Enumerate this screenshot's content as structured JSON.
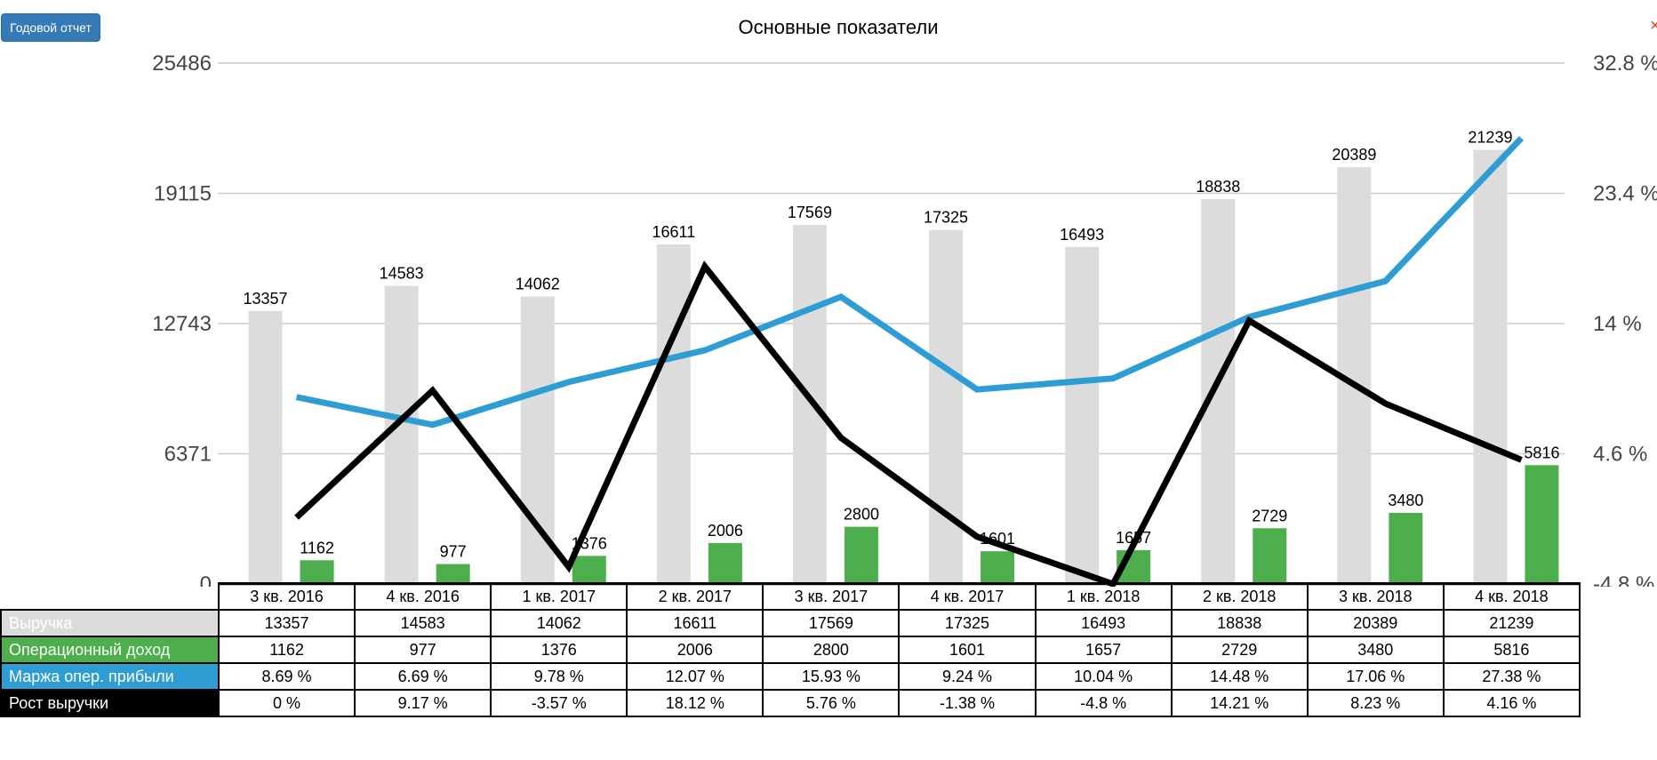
{
  "header": {
    "report_button_label": "Годовой отчет",
    "close_glyph": "×"
  },
  "chart_data": {
    "type": "bar",
    "title": "Основные показатели",
    "categories": [
      "3 кв. 2016",
      "4 кв. 2016",
      "1 кв. 2017",
      "2 кв. 2017",
      "3 кв. 2017",
      "4 кв. 2017",
      "1 кв. 2018",
      "2 кв. 2018",
      "3 кв. 2018",
      "4 кв. 2018"
    ],
    "left_axis": {
      "ylim": [
        0,
        25486
      ],
      "ticks": [
        "0",
        "6371",
        "12743",
        "19115",
        "25486"
      ]
    },
    "right_axis": {
      "ylim": [
        -4.8,
        32.8
      ],
      "ticks": [
        "-4.8 %",
        "4.6 %",
        "14 %",
        "23.4 %",
        "32.8 %"
      ]
    },
    "grid": true,
    "series": [
      {
        "name": "Выручка",
        "type": "bar",
        "axis": "left",
        "color": "#dcdcdc",
        "label_bg": "#dcdcdc",
        "label_color": "#ffffff",
        "values": [
          13357,
          14583,
          14062,
          16611,
          17569,
          17325,
          16493,
          18838,
          20389,
          21239
        ],
        "display": [
          "13357",
          "14583",
          "14062",
          "16611",
          "17569",
          "17325",
          "16493",
          "18838",
          "20389",
          "21239"
        ]
      },
      {
        "name": "Операционный доход",
        "type": "bar",
        "axis": "left",
        "color": "#4cae4c",
        "label_bg": "#4cae4c",
        "label_color": "#ffffff",
        "values": [
          1162,
          977,
          1376,
          2006,
          2800,
          1601,
          1657,
          2729,
          3480,
          5816
        ],
        "display": [
          "1162",
          "977",
          "1376",
          "2006",
          "2800",
          "1601",
          "1657",
          "2729",
          "3480",
          "5816"
        ]
      },
      {
        "name": "Маржа опер. прибыли",
        "type": "line",
        "axis": "right",
        "color": "#2e9dd3",
        "label_bg": "#2e9dd3",
        "label_color": "#ffffff",
        "values": [
          8.69,
          6.69,
          9.78,
          12.07,
          15.93,
          9.24,
          10.04,
          14.48,
          17.06,
          27.38
        ],
        "display": [
          "8.69 %",
          "6.69 %",
          "9.78 %",
          "12.07 %",
          "15.93 %",
          "9.24 %",
          "10.04 %",
          "14.48 %",
          "17.06 %",
          "27.38 %"
        ]
      },
      {
        "name": "Рост выручки",
        "type": "line",
        "axis": "right",
        "color": "#000000",
        "label_bg": "#000000",
        "label_color": "#ffffff",
        "values": [
          0,
          9.17,
          -3.57,
          18.12,
          5.76,
          -1.38,
          -4.8,
          14.21,
          8.23,
          4.16
        ],
        "display": [
          "0 %",
          "9.17 %",
          "-3.57 %",
          "18.12 %",
          "5.76 %",
          "-1.38 %",
          "-4.8 %",
          "14.21 %",
          "8.23 %",
          "4.16 %"
        ]
      }
    ]
  }
}
